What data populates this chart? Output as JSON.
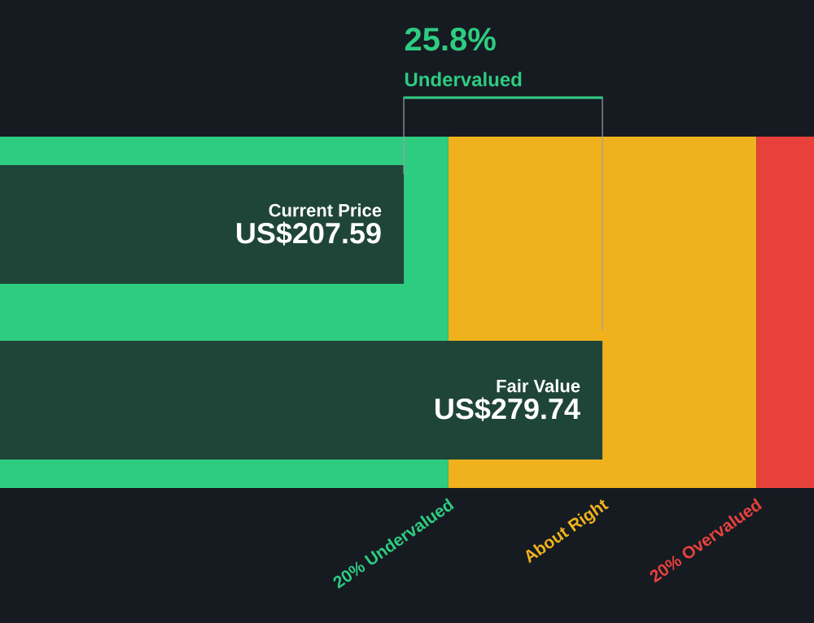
{
  "chart_data": {
    "type": "bar",
    "orientation": "horizontal",
    "categories": [
      "Current Price",
      "Fair Value"
    ],
    "values": [
      207.59,
      279.74
    ],
    "color": "#1f4538",
    "value_labels": [
      "US$207.59",
      "US$279.74"
    ],
    "xlim": [
      60.9,
      356.6
    ],
    "bands": [
      {
        "axis": "x",
        "from": 60.9,
        "to": 223.79,
        "label": "20% Undervalued",
        "color": "#2ecc80"
      },
      {
        "axis": "x",
        "from": 223.79,
        "to": 335.69,
        "label": "About Right",
        "color": "#f0b21c"
      },
      {
        "axis": "x",
        "from": 335.69,
        "to": 356.6,
        "label": "20% Overvalued",
        "color": "#e8413c"
      }
    ],
    "annotations": [
      "25.8%",
      "Undervalued"
    ]
  }
}
